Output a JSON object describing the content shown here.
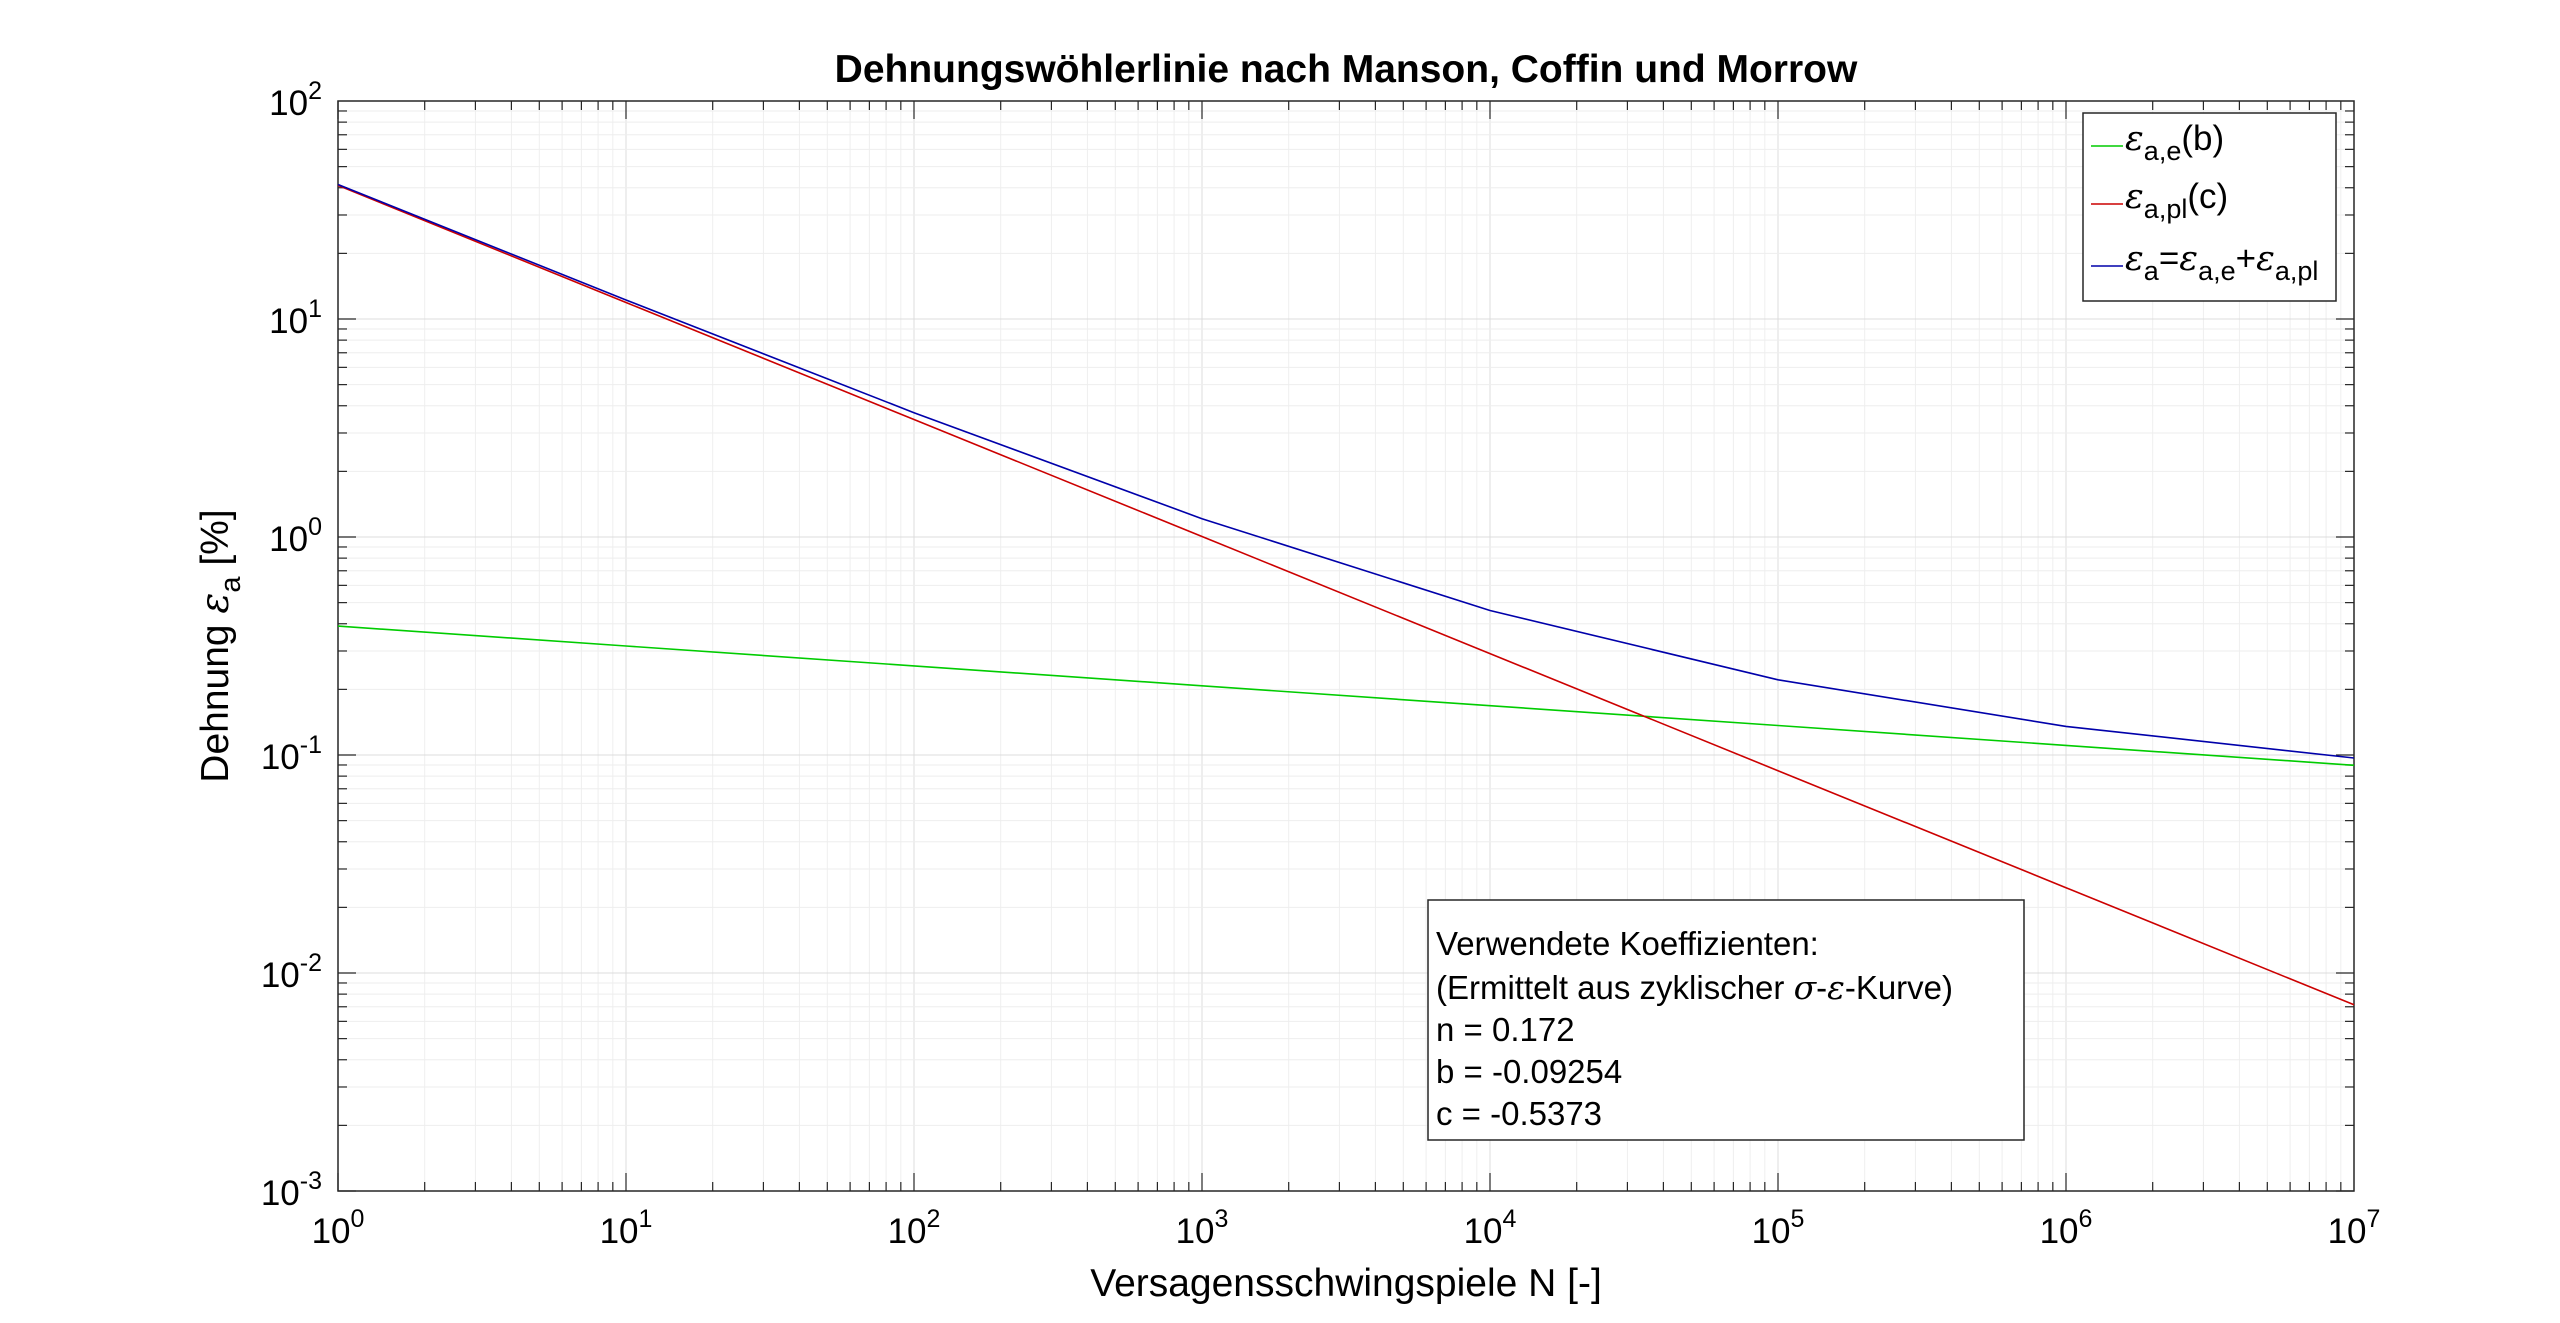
{
  "chart_data": {
    "type": "line",
    "title": "Dehnungswöhlerlinie nach Manson, Coffin und Morrow",
    "xlabel": "Versagensschwingspiele N   [-]",
    "ylabel": {
      "main": "Dehnung ",
      "symbol": "ε",
      "sub": "a",
      "unit": "  [%]"
    },
    "xscale": "log",
    "yscale": "log",
    "xlim": [
      1,
      10000000
    ],
    "ylim": [
      0.001,
      100
    ],
    "grid": true,
    "minor_grid": true,
    "x_ticks": [
      {
        "value": 1,
        "base": "10",
        "exp": "0"
      },
      {
        "value": 10,
        "base": "10",
        "exp": "1"
      },
      {
        "value": 100,
        "base": "10",
        "exp": "2"
      },
      {
        "value": 1000,
        "base": "10",
        "exp": "3"
      },
      {
        "value": 10000,
        "base": "10",
        "exp": "4"
      },
      {
        "value": 100000,
        "base": "10",
        "exp": "5"
      },
      {
        "value": 1000000,
        "base": "10",
        "exp": "6"
      },
      {
        "value": 10000000,
        "base": "10",
        "exp": "7"
      }
    ],
    "y_ticks": [
      {
        "value": 0.001,
        "base": "10",
        "exp": "-3"
      },
      {
        "value": 0.01,
        "base": "10",
        "exp": "-2"
      },
      {
        "value": 0.1,
        "base": "10",
        "exp": "-1"
      },
      {
        "value": 1,
        "base": "10",
        "exp": "0"
      },
      {
        "value": 10,
        "base": "10",
        "exp": "1"
      },
      {
        "value": 100,
        "base": "10",
        "exp": "2"
      }
    ],
    "legend_position": "top-right",
    "series": [
      {
        "key": "elastic",
        "legend": {
          "symbol": "ε",
          "sub": "a,e",
          "rest": "(b)"
        },
        "color": "#00cc00",
        "x": [
          1,
          10,
          100,
          1000,
          10000,
          100000,
          1000000,
          10000000
        ],
        "y": [
          0.39,
          0.3163,
          0.2563,
          0.2078,
          0.1684,
          0.1365,
          0.1107,
          0.0897
        ]
      },
      {
        "key": "plastic",
        "legend": {
          "symbol": "ε",
          "sub": "a,pl",
          "rest": "(c)"
        },
        "color": "#cc0000",
        "x": [
          1,
          10,
          100,
          1000,
          10000,
          100000,
          1000000,
          10000000
        ],
        "y": [
          41,
          11.91,
          3.459,
          1.005,
          0.2918,
          0.08476,
          0.02462,
          0.00715
        ]
      },
      {
        "key": "total",
        "legend": {
          "symbol": "ε",
          "sub": "a",
          "eq": "=",
          "symbol2": "ε",
          "sub2": "a,e",
          "plus": "+",
          "symbol3": "ε",
          "sub3": "a,pl"
        },
        "color": "#0000aa",
        "x": [
          1,
          10,
          100,
          1000,
          10000,
          100000,
          1000000,
          10000000
        ],
        "y": [
          41.39,
          12.226,
          3.715,
          1.213,
          0.4602,
          0.2213,
          0.1353,
          0.0969
        ]
      }
    ],
    "annotation": {
      "line1": "Verwendete Koeffizienten:",
      "line2": {
        "pre": "(Ermittelt aus zyklischer ",
        "sigma": "σ",
        "dash": "-",
        "eps": "ε",
        "post": "-Kurve)"
      },
      "line3": "n = 0.172",
      "line4": "b = -0.09254",
      "line5": "c = -0.5373"
    }
  }
}
